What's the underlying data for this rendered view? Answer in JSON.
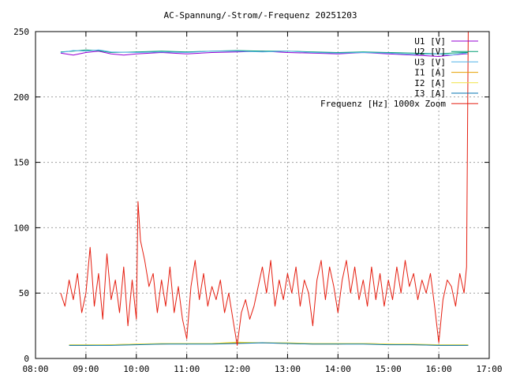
{
  "chart_data": {
    "type": "line",
    "title": "AC-Spannung/-Strom/-Frequenz 20251203",
    "xlabel": "",
    "ylabel": "",
    "x_range": [
      "08:00",
      "17:00"
    ],
    "ylim": [
      0,
      250
    ],
    "x_ticks": [
      "08:00",
      "09:00",
      "10:00",
      "11:00",
      "12:00",
      "13:00",
      "14:00",
      "15:00",
      "16:00",
      "17:00"
    ],
    "y_ticks": [
      0,
      50,
      100,
      150,
      200,
      250
    ],
    "grid": true,
    "legend_position": "top-right",
    "series": [
      {
        "name": "U1 [V]",
        "color": "#9400d3",
        "points": [
          [
            "08:30",
            233.5
          ],
          [
            "08:45",
            232
          ],
          [
            "09:00",
            234
          ],
          [
            "09:15",
            235
          ],
          [
            "09:30",
            233
          ],
          [
            "09:45",
            232
          ],
          [
            "10:00",
            233
          ],
          [
            "10:30",
            234
          ],
          [
            "11:00",
            233
          ],
          [
            "11:30",
            234
          ],
          [
            "12:00",
            234.5
          ],
          [
            "12:30",
            235
          ],
          [
            "13:00",
            234
          ],
          [
            "13:30",
            233.5
          ],
          [
            "14:00",
            233
          ],
          [
            "14:30",
            234
          ],
          [
            "15:00",
            233
          ],
          [
            "15:30",
            232
          ],
          [
            "16:00",
            231
          ],
          [
            "16:15",
            232
          ],
          [
            "16:30",
            233
          ],
          [
            "16:35",
            233
          ]
        ]
      },
      {
        "name": "U2 [V]",
        "color": "#009e73",
        "points": [
          [
            "08:30",
            234.5
          ],
          [
            "08:45",
            235
          ],
          [
            "09:00",
            236
          ],
          [
            "09:15",
            235.5
          ],
          [
            "09:30",
            234
          ],
          [
            "10:00",
            234.5
          ],
          [
            "10:30",
            235
          ],
          [
            "11:00",
            234.5
          ],
          [
            "11:30",
            235
          ],
          [
            "12:00",
            235.5
          ],
          [
            "12:30",
            235
          ],
          [
            "13:00",
            235
          ],
          [
            "13:30",
            234.5
          ],
          [
            "14:00",
            234
          ],
          [
            "14:30",
            234.5
          ],
          [
            "15:00",
            234
          ],
          [
            "15:30",
            233.5
          ],
          [
            "16:00",
            233
          ],
          [
            "16:15",
            233.5
          ],
          [
            "16:30",
            234
          ],
          [
            "16:35",
            234
          ]
        ]
      },
      {
        "name": "U3 [V]",
        "color": "#56b4e9",
        "points": [
          [
            "08:30",
            234
          ],
          [
            "08:45",
            235.5
          ],
          [
            "09:00",
            235
          ],
          [
            "09:15",
            236
          ],
          [
            "09:30",
            234.5
          ],
          [
            "10:00",
            234
          ],
          [
            "10:30",
            234.5
          ],
          [
            "11:00",
            234
          ],
          [
            "11:30",
            235
          ],
          [
            "12:00",
            235
          ],
          [
            "12:30",
            234.5
          ],
          [
            "13:00",
            235
          ],
          [
            "13:30",
            234
          ],
          [
            "14:00",
            233.5
          ],
          [
            "14:30",
            234
          ],
          [
            "15:00",
            233.5
          ],
          [
            "15:30",
            232.5
          ],
          [
            "16:00",
            233
          ],
          [
            "16:15",
            232
          ],
          [
            "16:30",
            233.5
          ],
          [
            "16:35",
            233
          ]
        ]
      },
      {
        "name": "I1 [A]",
        "color": "#e69f00",
        "points": [
          [
            "08:40",
            10
          ],
          [
            "09:00",
            10
          ],
          [
            "09:30",
            10.5
          ],
          [
            "10:00",
            11
          ],
          [
            "10:30",
            11
          ],
          [
            "11:00",
            11.5
          ],
          [
            "11:30",
            11.5
          ],
          [
            "12:00",
            12
          ],
          [
            "12:30",
            12
          ],
          [
            "13:00",
            11.5
          ],
          [
            "13:30",
            11
          ],
          [
            "14:00",
            11
          ],
          [
            "14:30",
            11.5
          ],
          [
            "15:00",
            11
          ],
          [
            "15:30",
            10.5
          ],
          [
            "16:00",
            10
          ],
          [
            "16:30",
            10
          ],
          [
            "16:35",
            10
          ]
        ]
      },
      {
        "name": "I2 [A]",
        "color": "#f0e442",
        "points": [
          [
            "08:40",
            10.5
          ],
          [
            "09:00",
            10.5
          ],
          [
            "09:30",
            10.5
          ],
          [
            "10:00",
            11
          ],
          [
            "10:30",
            11.5
          ],
          [
            "11:00",
            11.5
          ],
          [
            "11:30",
            11.5
          ],
          [
            "12:00",
            12.5
          ],
          [
            "12:30",
            12
          ],
          [
            "13:00",
            12
          ],
          [
            "13:30",
            11.5
          ],
          [
            "14:00",
            11.5
          ],
          [
            "14:30",
            11.5
          ],
          [
            "15:00",
            11
          ],
          [
            "15:30",
            11
          ],
          [
            "16:00",
            10.5
          ],
          [
            "16:30",
            10.5
          ],
          [
            "16:35",
            10.5
          ]
        ]
      },
      {
        "name": "I3 [A]",
        "color": "#0072b2",
        "points": [
          [
            "08:40",
            10
          ],
          [
            "09:00",
            10
          ],
          [
            "09:30",
            10
          ],
          [
            "10:00",
            10.5
          ],
          [
            "10:30",
            11
          ],
          [
            "11:00",
            11
          ],
          [
            "11:30",
            11
          ],
          [
            "12:00",
            11.5
          ],
          [
            "12:30",
            12
          ],
          [
            "13:00",
            11.5
          ],
          [
            "13:30",
            11
          ],
          [
            "14:00",
            11
          ],
          [
            "14:30",
            11
          ],
          [
            "15:00",
            10.5
          ],
          [
            "15:30",
            10.5
          ],
          [
            "16:00",
            10
          ],
          [
            "16:30",
            10
          ],
          [
            "16:35",
            10
          ]
        ]
      },
      {
        "name": "Frequenz [Hz] 1000x Zoom",
        "color": "#e51e10",
        "points": [
          [
            "08:30",
            50
          ],
          [
            "08:35",
            40
          ],
          [
            "08:40",
            60
          ],
          [
            "08:45",
            45
          ],
          [
            "08:50",
            65
          ],
          [
            "08:55",
            35
          ],
          [
            "09:00",
            50
          ],
          [
            "09:05",
            85
          ],
          [
            "09:10",
            40
          ],
          [
            "09:15",
            65
          ],
          [
            "09:20",
            30
          ],
          [
            "09:25",
            80
          ],
          [
            "09:30",
            45
          ],
          [
            "09:35",
            60
          ],
          [
            "09:40",
            35
          ],
          [
            "09:45",
            70
          ],
          [
            "09:50",
            25
          ],
          [
            "09:55",
            60
          ],
          [
            "10:00",
            30
          ],
          [
            "10:02",
            120
          ],
          [
            "10:05",
            90
          ],
          [
            "10:10",
            75
          ],
          [
            "10:15",
            55
          ],
          [
            "10:20",
            65
          ],
          [
            "10:25",
            35
          ],
          [
            "10:30",
            60
          ],
          [
            "10:35",
            40
          ],
          [
            "10:40",
            70
          ],
          [
            "10:45",
            35
          ],
          [
            "10:50",
            55
          ],
          [
            "10:55",
            30
          ],
          [
            "11:00",
            15
          ],
          [
            "11:05",
            55
          ],
          [
            "11:10",
            75
          ],
          [
            "11:15",
            45
          ],
          [
            "11:20",
            65
          ],
          [
            "11:25",
            40
          ],
          [
            "11:30",
            55
          ],
          [
            "11:35",
            45
          ],
          [
            "11:40",
            60
          ],
          [
            "11:45",
            35
          ],
          [
            "11:50",
            50
          ],
          [
            "11:55",
            30
          ],
          [
            "12:00",
            10
          ],
          [
            "12:05",
            35
          ],
          [
            "12:10",
            45
          ],
          [
            "12:15",
            30
          ],
          [
            "12:20",
            40
          ],
          [
            "12:25",
            55
          ],
          [
            "12:30",
            70
          ],
          [
            "12:35",
            50
          ],
          [
            "12:40",
            75
          ],
          [
            "12:45",
            40
          ],
          [
            "12:50",
            60
          ],
          [
            "12:55",
            45
          ],
          [
            "13:00",
            65
          ],
          [
            "13:05",
            50
          ],
          [
            "13:10",
            70
          ],
          [
            "13:15",
            40
          ],
          [
            "13:20",
            60
          ],
          [
            "13:25",
            50
          ],
          [
            "13:30",
            25
          ],
          [
            "13:35",
            60
          ],
          [
            "13:40",
            75
          ],
          [
            "13:45",
            45
          ],
          [
            "13:50",
            70
          ],
          [
            "13:55",
            55
          ],
          [
            "14:00",
            35
          ],
          [
            "14:05",
            60
          ],
          [
            "14:10",
            75
          ],
          [
            "14:15",
            50
          ],
          [
            "14:20",
            70
          ],
          [
            "14:25",
            45
          ],
          [
            "14:30",
            60
          ],
          [
            "14:35",
            40
          ],
          [
            "14:40",
            70
          ],
          [
            "14:45",
            45
          ],
          [
            "14:50",
            65
          ],
          [
            "14:55",
            40
          ],
          [
            "15:00",
            60
          ],
          [
            "15:05",
            45
          ],
          [
            "15:10",
            70
          ],
          [
            "15:15",
            50
          ],
          [
            "15:20",
            75
          ],
          [
            "15:25",
            55
          ],
          [
            "15:30",
            65
          ],
          [
            "15:35",
            45
          ],
          [
            "15:40",
            60
          ],
          [
            "15:45",
            50
          ],
          [
            "15:50",
            65
          ],
          [
            "15:55",
            40
          ],
          [
            "16:00",
            12
          ],
          [
            "16:05",
            45
          ],
          [
            "16:10",
            60
          ],
          [
            "16:15",
            55
          ],
          [
            "16:20",
            40
          ],
          [
            "16:25",
            65
          ],
          [
            "16:30",
            50
          ],
          [
            "16:33",
            70
          ],
          [
            "16:35",
            250
          ]
        ]
      }
    ]
  }
}
